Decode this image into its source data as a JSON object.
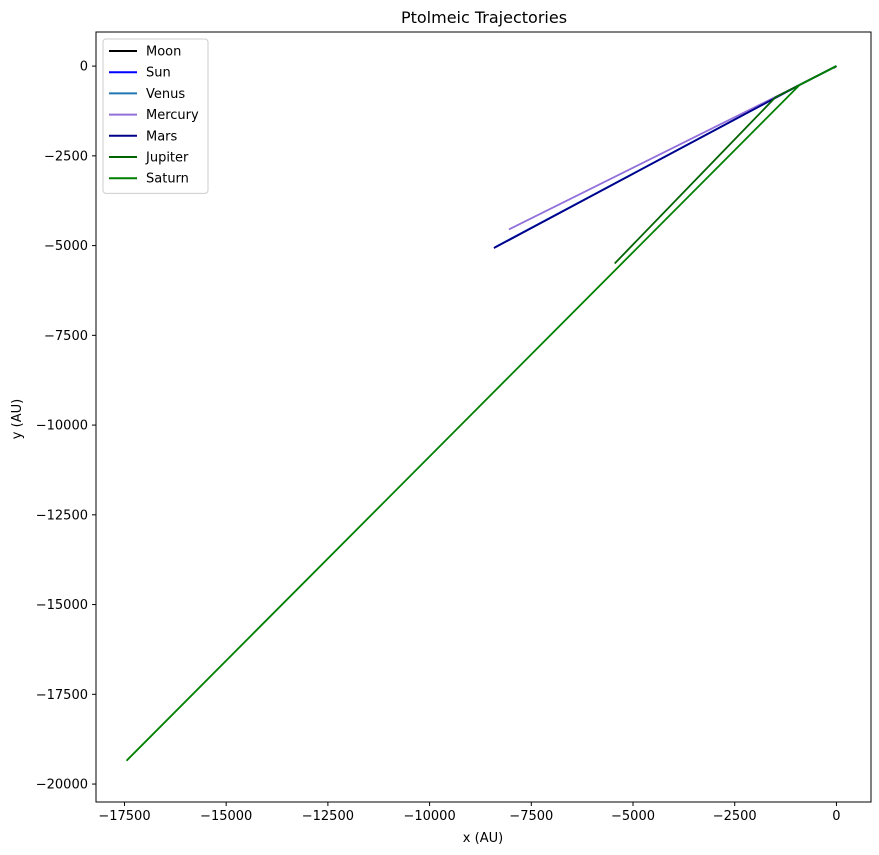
{
  "chart_data": {
    "type": "line",
    "title": "Ptolmeic Trajectories",
    "xlabel": "x (AU)",
    "ylabel": "y (AU)",
    "xlim": [
      -18200,
      850
    ],
    "ylim": [
      -20500,
      950
    ],
    "xticks": [
      -17500,
      -15000,
      -12500,
      -10000,
      -7500,
      -5000,
      -2500,
      0
    ],
    "xtick_labels": [
      "−17500",
      "−15000",
      "−12500",
      "−10000",
      "−7500",
      "−5000",
      "−2500",
      "0"
    ],
    "yticks": [
      0,
      -2500,
      -5000,
      -7500,
      -10000,
      -12500,
      -15000,
      -17500,
      -20000
    ],
    "ytick_labels": [
      "0",
      "−2500",
      "−5000",
      "−7500",
      "−10000",
      "−12500",
      "−15000",
      "−17500",
      "−20000"
    ],
    "grid": false,
    "legend_position": "top-left",
    "series": [
      {
        "name": "Moon",
        "color": "#000000",
        "x": [
          0,
          -60
        ],
        "y": [
          0,
          -50
        ]
      },
      {
        "name": "Sun",
        "color": "#0000ff",
        "x": [
          0,
          -900,
          -8400
        ],
        "y": [
          0,
          -520,
          -5050
        ]
      },
      {
        "name": "Venus",
        "color": "#1f77b4",
        "x": [
          0,
          -900,
          -8350
        ],
        "y": [
          0,
          -520,
          -5020
        ]
      },
      {
        "name": "Mercury",
        "color": "#9370db",
        "x": [
          0,
          -900,
          -8050
        ],
        "y": [
          0,
          -520,
          -4550
        ]
      },
      {
        "name": "Mars",
        "color": "#00008b",
        "x": [
          0,
          -900,
          -8420
        ],
        "y": [
          0,
          -520,
          -5070
        ]
      },
      {
        "name": "Jupiter",
        "color": "#006400",
        "x": [
          0,
          -1500,
          -5450
        ],
        "y": [
          0,
          -870,
          -5500
        ]
      },
      {
        "name": "Saturn",
        "color": "#008000",
        "x": [
          0,
          -900,
          -17450
        ],
        "y": [
          0,
          -520,
          -19350
        ]
      }
    ]
  }
}
